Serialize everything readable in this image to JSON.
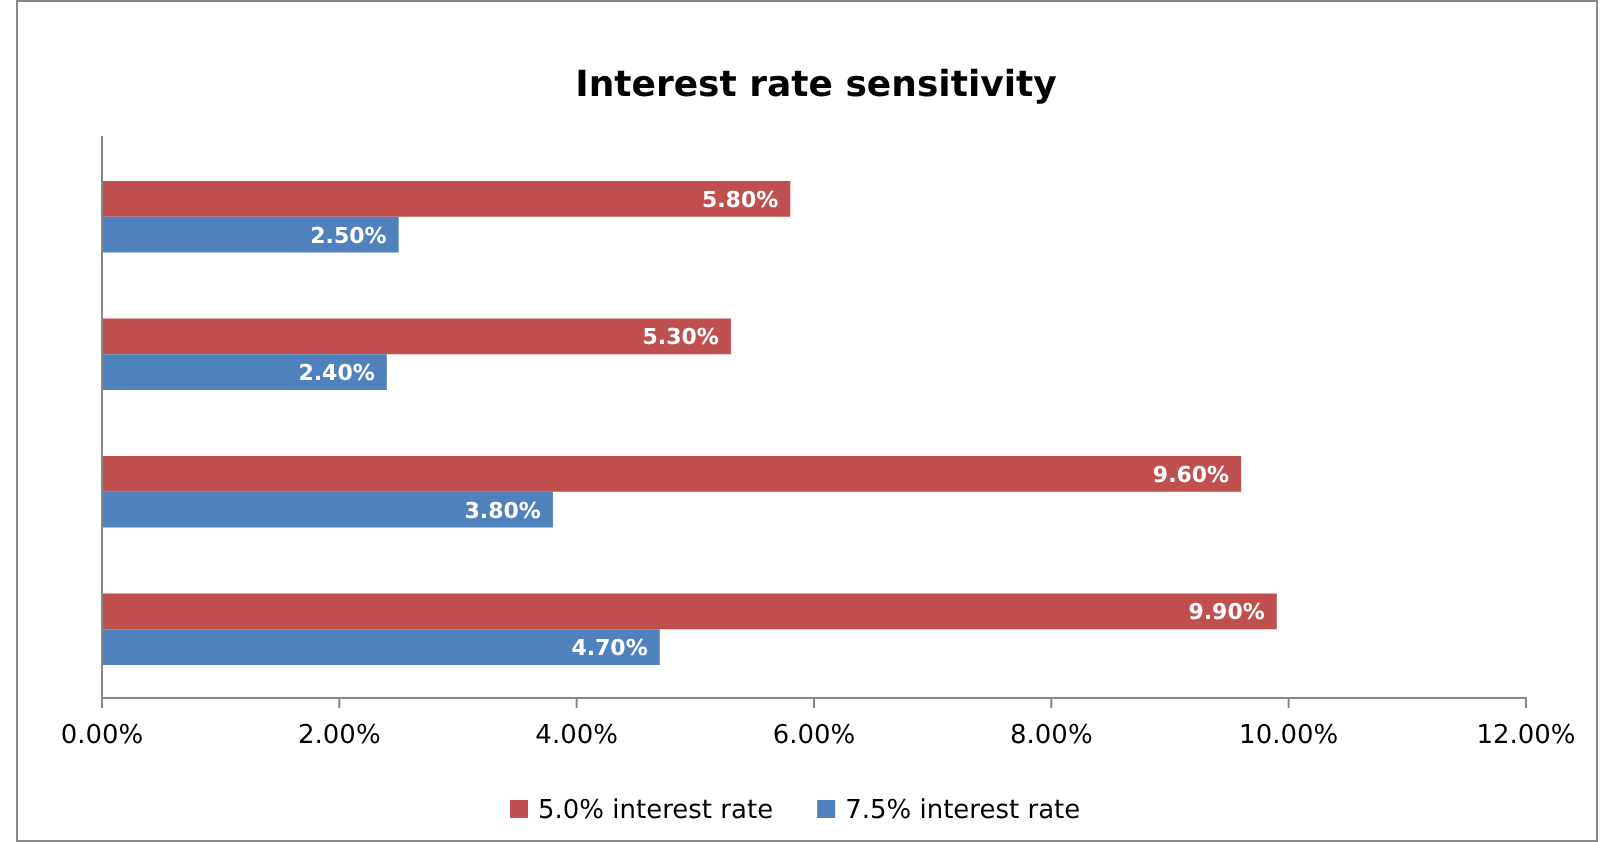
{
  "chart_data": {
    "type": "bar",
    "orientation": "horizontal",
    "title": "Interest rate sensitivity",
    "categories": [
      null,
      null,
      null,
      null
    ],
    "series": [
      {
        "name": "5.0% interest rate",
        "color": "#c0504d",
        "values": [
          5.8,
          5.3,
          9.6,
          9.9
        ],
        "value_labels": [
          "5.80%",
          "5.30%",
          "9.60%",
          "9.90%"
        ]
      },
      {
        "name": "7.5% interest rate",
        "color": "#4f81bd",
        "values": [
          2.5,
          2.4,
          3.8,
          4.7
        ],
        "value_labels": [
          "2.50%",
          "2.40%",
          "3.80%",
          "4.70%"
        ]
      }
    ],
    "xlim": [
      0,
      12
    ],
    "xticks": [
      {
        "value": 0,
        "label": "0.00%"
      },
      {
        "value": 2,
        "label": "2.00%"
      },
      {
        "value": 4,
        "label": "4.00%"
      },
      {
        "value": 6,
        "label": "6.00%"
      },
      {
        "value": 8,
        "label": "8.00%"
      },
      {
        "value": 10,
        "label": "10.00%"
      },
      {
        "value": 12,
        "label": "12.00%"
      }
    ],
    "grid": false,
    "legend": "bottom"
  }
}
